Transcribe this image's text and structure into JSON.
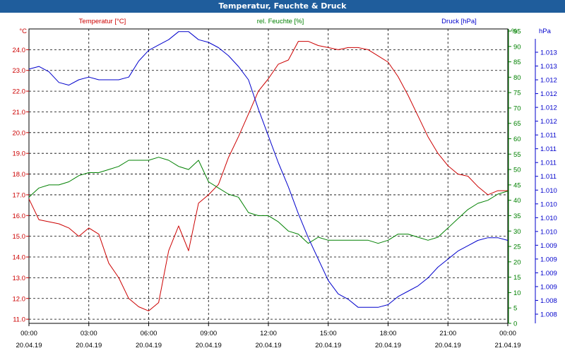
{
  "window": {
    "title": "Temperatur, Feuchte & Druck"
  },
  "chart_data": {
    "type": "line",
    "title": "Temperatur, Feuchte & Druck",
    "grid": true,
    "x_ticks": [
      {
        "time": "00:00",
        "date": "20.04.19"
      },
      {
        "time": "03:00",
        "date": "20.04.19"
      },
      {
        "time": "06:00",
        "date": "20.04.19"
      },
      {
        "time": "09:00",
        "date": "20.04.19"
      },
      {
        "time": "12:00",
        "date": "20.04.19"
      },
      {
        "time": "15:00",
        "date": "20.04.19"
      },
      {
        "time": "18:00",
        "date": "20.04.19"
      },
      {
        "time": "21:00",
        "date": "20.04.19"
      },
      {
        "time": "00:00",
        "date": "21.04.19"
      }
    ],
    "x_hours": [
      0,
      0.5,
      1,
      1.5,
      2,
      2.5,
      3,
      3.5,
      4,
      4.5,
      5,
      5.5,
      6,
      6.5,
      7,
      7.5,
      8,
      8.5,
      9,
      9.5,
      10,
      10.5,
      11,
      11.5,
      12,
      12.5,
      13,
      13.5,
      14,
      14.5,
      15,
      15.5,
      16,
      16.5,
      17,
      17.5,
      18,
      18.5,
      19,
      19.5,
      20,
      20.5,
      21,
      21.5,
      22,
      22.5,
      23,
      23.5,
      24
    ],
    "axes": {
      "temperature": {
        "label": "Temperatur [°C]",
        "unit": "°C",
        "color": "#cc0000",
        "min": 10.8,
        "max": 25.0,
        "ticks": [
          "11.0",
          "12.0",
          "13.0",
          "14.0",
          "15.0",
          "16.0",
          "17.0",
          "18.0",
          "19.0",
          "20.0",
          "21.0",
          "22.0",
          "23.0",
          "24.0"
        ]
      },
      "humidity": {
        "label": "rel. Feuchte [%]",
        "unit": "%",
        "color": "#008000",
        "min": 0,
        "max": 95,
        "ticks": [
          "0",
          "5",
          "10",
          "15",
          "20",
          "25",
          "30",
          "35",
          "40",
          "45",
          "50",
          "55",
          "60",
          "65",
          "70",
          "75",
          "80",
          "85",
          "90",
          "95"
        ]
      },
      "pressure": {
        "label": "Druck [hPa]",
        "unit": "hPa",
        "color": "#0000cc",
        "min": 1007.8,
        "max": 1013.3,
        "ticks": [
          "1.008",
          "1.008",
          "1.009",
          "1.009",
          "1.009",
          "1.009",
          "1.010",
          "1.010",
          "1.010",
          "1.010",
          "1.011",
          "1.011",
          "1.011",
          "1.011",
          "1.012",
          "1.012",
          "1.012",
          "1.012",
          "1.013",
          "1.013"
        ]
      }
    },
    "series": [
      {
        "name": "Temperatur [°C]",
        "axis": "temperature",
        "color": "#cc0000",
        "values": [
          16.8,
          15.8,
          15.7,
          15.6,
          15.4,
          15.0,
          15.4,
          15.1,
          13.7,
          13.0,
          12.0,
          11.6,
          11.4,
          11.8,
          14.3,
          15.5,
          14.3,
          16.6,
          17.0,
          17.5,
          18.8,
          19.8,
          20.9,
          22.0,
          22.6,
          23.3,
          23.5,
          24.4,
          24.4,
          24.2,
          24.1,
          24.0,
          24.1,
          24.1,
          24.0,
          23.7,
          23.4,
          22.7,
          21.8,
          20.8,
          19.8,
          19.0,
          18.4,
          18.0,
          17.9,
          17.4,
          17.0,
          17.2,
          17.2
        ]
      },
      {
        "name": "rel. Feuchte [%]",
        "axis": "humidity",
        "color": "#008000",
        "values": [
          41,
          44,
          45,
          45,
          46,
          48,
          49,
          49,
          50,
          51,
          53,
          53,
          53,
          54,
          53,
          51,
          50,
          53,
          46,
          44,
          42,
          41,
          36,
          35,
          35,
          33,
          30,
          29,
          26,
          28,
          27,
          27,
          27,
          27,
          27,
          26,
          27,
          29,
          29,
          28,
          27,
          28,
          31,
          34,
          37,
          39,
          40,
          42,
          43
        ]
      },
      {
        "name": "Druck [hPa]",
        "axis": "pressure",
        "color": "#0000cc",
        "values": [
          1012.55,
          1012.6,
          1012.5,
          1012.3,
          1012.25,
          1012.35,
          1012.4,
          1012.35,
          1012.35,
          1012.35,
          1012.4,
          1012.7,
          1012.9,
          1013.0,
          1013.1,
          1013.25,
          1013.25,
          1013.1,
          1013.05,
          1012.95,
          1012.8,
          1012.6,
          1012.35,
          1011.8,
          1011.3,
          1010.8,
          1010.35,
          1009.85,
          1009.4,
          1009.0,
          1008.6,
          1008.35,
          1008.25,
          1008.1,
          1008.1,
          1008.1,
          1008.15,
          1008.3,
          1008.4,
          1008.5,
          1008.65,
          1008.85,
          1009.0,
          1009.15,
          1009.25,
          1009.35,
          1009.4,
          1009.4,
          1009.35
        ]
      }
    ]
  }
}
